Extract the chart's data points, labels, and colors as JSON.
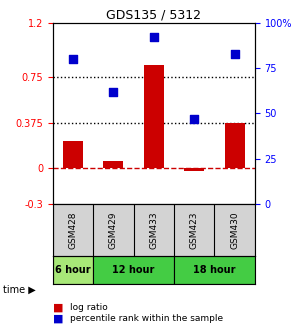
{
  "title": "GDS135 / 5312",
  "samples": [
    "GSM428",
    "GSM429",
    "GSM433",
    "GSM423",
    "GSM430"
  ],
  "log_ratio": [
    0.22,
    0.055,
    0.855,
    -0.03,
    0.375
  ],
  "percentile_rank": [
    80,
    62,
    92,
    47,
    83
  ],
  "left_ylim": [
    -0.3,
    1.2
  ],
  "right_ylim": [
    0,
    100
  ],
  "left_yticks": [
    -0.3,
    0,
    0.375,
    0.75,
    1.2
  ],
  "left_yticklabels": [
    "-0.3",
    "0",
    "0.375",
    "0.75",
    "1.2"
  ],
  "right_yticks": [
    0,
    25,
    50,
    75,
    100
  ],
  "right_yticklabels": [
    "0",
    "25",
    "50",
    "75",
    "100%"
  ],
  "hline_dotted": [
    0.75,
    0.375
  ],
  "hline_dashed_red": 0,
  "bar_color": "#cc0000",
  "dot_color": "#0000cc",
  "time_groups": [
    {
      "label": "6 hour",
      "samples": [
        "GSM428"
      ],
      "color": "#90ee90"
    },
    {
      "label": "12 hour",
      "samples": [
        "GSM429",
        "GSM433"
      ],
      "color": "#00cc00"
    },
    {
      "label": "18 hour",
      "samples": [
        "GSM423",
        "GSM430"
      ],
      "color": "#00cc00"
    }
  ],
  "legend_bar_label": "log ratio",
  "legend_dot_label": "percentile rank within the sample",
  "time_label": "time",
  "gsm_bg_color": "#d3d3d3",
  "time_row_colors": [
    "#c8f0a0",
    "#66dd66",
    "#66dd66"
  ]
}
